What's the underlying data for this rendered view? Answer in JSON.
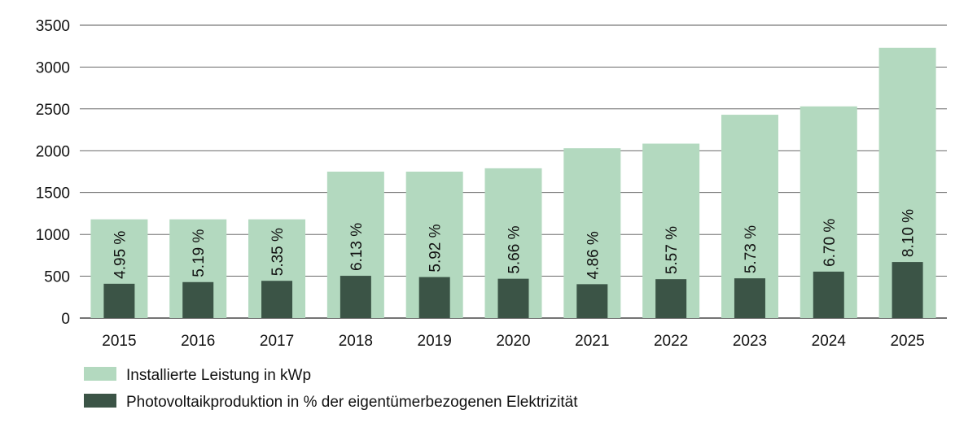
{
  "chart_data": {
    "type": "bar",
    "categories": [
      "2015",
      "2016",
      "2017",
      "2018",
      "2019",
      "2020",
      "2021",
      "2022",
      "2023",
      "2024",
      "2025"
    ],
    "series": [
      {
        "name": "Installierte Leistung in kWp",
        "values": [
          1180,
          1180,
          1180,
          1750,
          1750,
          1790,
          2030,
          2085,
          2430,
          2530,
          3230
        ],
        "color": "#b3d9bf"
      },
      {
        "name": "Photovoltaikproduktion in % der eigentümerbezogenen Elektrizität",
        "values": [
          410,
          430,
          445,
          505,
          490,
          470,
          405,
          465,
          475,
          555,
          670
        ],
        "labels": [
          "4.95 %",
          "5.19 %",
          "5.35 %",
          "6.13 %",
          "5.92 %",
          "5.66 %",
          "4.86 %",
          "5.57 %",
          "5.73 %",
          "6.70 %",
          "8.10 %"
        ],
        "color": "#3b5446"
      }
    ],
    "ylim": [
      0,
      3500
    ],
    "yticks": [
      0,
      500,
      1000,
      1500,
      2000,
      2500,
      3000,
      3500
    ],
    "grid": true,
    "legend_position": "bottom-left"
  }
}
